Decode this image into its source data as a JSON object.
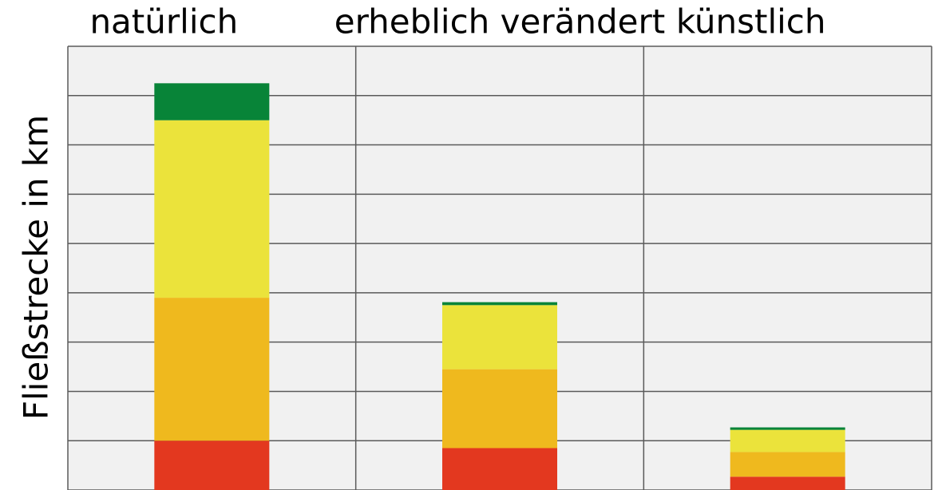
{
  "chart_data": {
    "type": "stacked_bar",
    "ylabel": "Fließstrecke in km",
    "categories": [
      "natürlich",
      "erheblich verändert",
      "künstlich"
    ],
    "series": [
      {
        "color": "#e3381f",
        "values": [
          1.0,
          0.85,
          0.27
        ]
      },
      {
        "color": "#efb91e",
        "values": [
          2.9,
          1.6,
          0.5
        ]
      },
      {
        "color": "#ebe33b",
        "values": [
          3.6,
          1.3,
          0.45
        ]
      },
      {
        "color": "#088438",
        "values": [
          0.75,
          0.06,
          0.05
        ]
      }
    ],
    "ylim": [
      0,
      9
    ],
    "yticks": [
      0,
      1,
      2,
      3,
      4,
      5,
      6,
      7,
      8,
      9
    ],
    "grid": true
  }
}
